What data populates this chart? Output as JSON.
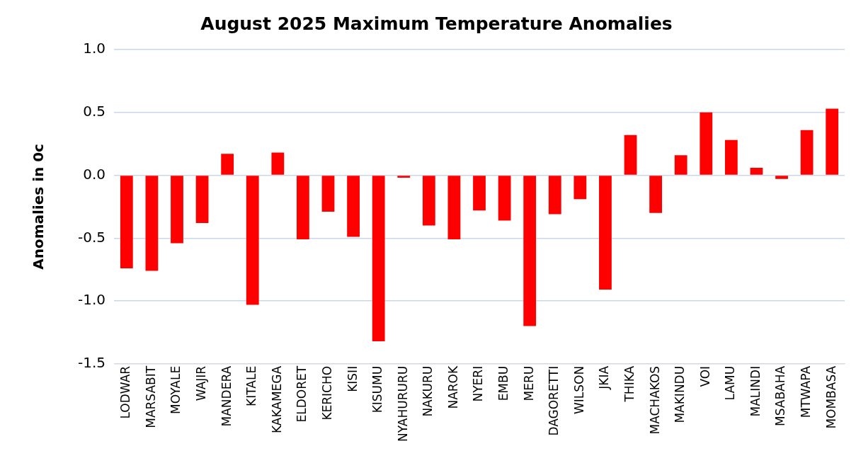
{
  "chart_data": {
    "type": "bar",
    "title": "August 2025 Maximum Temperature Anomalies",
    "ylabel": "Anomalies in 0c",
    "categories": [
      "LODWAR",
      "MARSABIT",
      "MOYALE",
      "WAJIR",
      "MANDERA",
      "KITALE",
      "KAKAMEGA",
      "ELDORET",
      "KERICHO",
      "KISII",
      "KISUMU",
      "NYAHURURU",
      "NAKURU",
      "NAROK",
      "NYERI",
      "EMBU",
      "MERU",
      "DAGORETTI",
      "WILSON",
      "JKIA",
      "THIKA",
      "MACHAKOS",
      "MAKINDU",
      "VOI",
      "LAMU",
      "MALINDI",
      "MSABAHA",
      "MTWAPA",
      "MOMBASA"
    ],
    "values": [
      -0.74,
      -0.76,
      -0.54,
      -0.38,
      0.17,
      -1.03,
      0.18,
      -0.51,
      -0.29,
      -0.49,
      -1.32,
      -0.02,
      -0.4,
      -0.51,
      -0.28,
      -0.36,
      -1.2,
      -0.31,
      -0.19,
      -0.91,
      0.32,
      -0.3,
      0.16,
      0.5,
      0.28,
      0.06,
      -0.03,
      0.36,
      0.53
    ],
    "color": "#ff0000",
    "ylim": [
      -1.5,
      1.0
    ],
    "yticks": [
      {
        "value": -1.5,
        "label": "-1.5"
      },
      {
        "value": -1.0,
        "label": "-1.0"
      },
      {
        "value": -0.5,
        "label": "-0.5"
      },
      {
        "value": 0,
        "label": "0.0"
      },
      {
        "value": 0.5,
        "label": "0.5"
      },
      {
        "value": 1.0,
        "label": "1.0"
      }
    ],
    "grid": "y",
    "legend": false
  }
}
